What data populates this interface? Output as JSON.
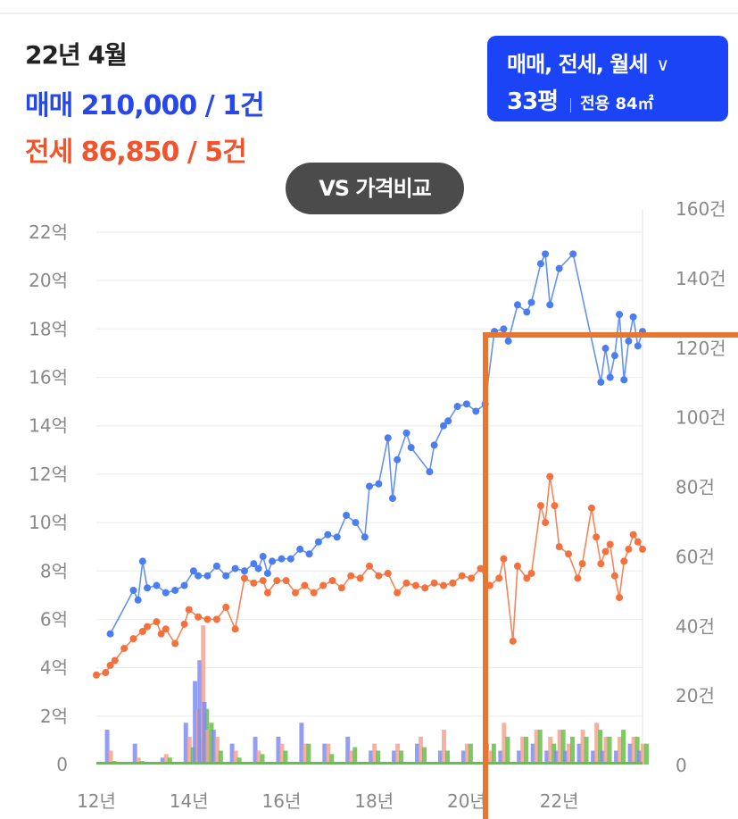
{
  "header": {
    "period": "22년 4월",
    "sale_line": "매매 210,000 / 1건",
    "jeonse_line": "전세 86,850 / 5건"
  },
  "type_button": {
    "types": "매매, 전세, 월세",
    "chevron_icon": "chevron-down-icon",
    "pyeong": "33평",
    "area": "전용 84㎡",
    "color": "#1a44f5"
  },
  "vs_button": {
    "label": "VS 가격비교"
  },
  "chart_data": {
    "type": "line",
    "x_ticks": [
      "12년",
      "14년",
      "16년",
      "18년",
      "20년",
      "22년"
    ],
    "y_left_ticks": [
      "0",
      "2억",
      "4억",
      "6억",
      "8억",
      "10억",
      "12억",
      "14억",
      "16억",
      "18억",
      "20억",
      "22억"
    ],
    "y_right_ticks": [
      "0",
      "20건",
      "40건",
      "60건",
      "80건",
      "100건",
      "120건",
      "140건",
      "160건"
    ],
    "ylim_left": [
      0,
      22
    ],
    "ylim_right": [
      0,
      160
    ],
    "xlim": [
      2012,
      2023.8
    ],
    "grid": true,
    "series": [
      {
        "color": "#4a7ef0",
        "points": [
          [
            2012.3,
            5.4
          ],
          [
            2012.8,
            7.2
          ],
          [
            2012.9,
            6.8
          ],
          [
            2013.0,
            8.4
          ],
          [
            2013.1,
            7.3
          ],
          [
            2013.3,
            7.4
          ],
          [
            2013.5,
            7.1
          ],
          [
            2013.7,
            7.2
          ],
          [
            2013.9,
            7.4
          ],
          [
            2014.1,
            8.0
          ],
          [
            2014.2,
            7.8
          ],
          [
            2014.4,
            7.8
          ],
          [
            2014.6,
            8.2
          ],
          [
            2014.8,
            7.8
          ],
          [
            2015.0,
            8.1
          ],
          [
            2015.2,
            8.0
          ],
          [
            2015.4,
            8.3
          ],
          [
            2015.5,
            8.1
          ],
          [
            2015.6,
            8.6
          ],
          [
            2015.7,
            7.9
          ],
          [
            2015.8,
            8.4
          ],
          [
            2016.0,
            8.5
          ],
          [
            2016.2,
            8.5
          ],
          [
            2016.4,
            8.9
          ],
          [
            2016.6,
            8.7
          ],
          [
            2016.8,
            9.2
          ],
          [
            2017.0,
            9.5
          ],
          [
            2017.2,
            9.4
          ],
          [
            2017.4,
            10.3
          ],
          [
            2017.6,
            10.0
          ],
          [
            2017.8,
            9.4
          ],
          [
            2017.9,
            11.5
          ],
          [
            2018.1,
            11.6
          ],
          [
            2018.3,
            13.5
          ],
          [
            2018.4,
            11.0
          ],
          [
            2018.5,
            12.6
          ],
          [
            2018.7,
            13.7
          ],
          [
            2018.8,
            13.1
          ],
          [
            2019.2,
            12.1
          ],
          [
            2019.3,
            13.2
          ],
          [
            2019.5,
            14.0
          ],
          [
            2019.6,
            14.2
          ],
          [
            2019.8,
            14.8
          ],
          [
            2020.0,
            14.9
          ],
          [
            2020.2,
            14.6
          ],
          [
            2020.4,
            14.9
          ],
          [
            2020.6,
            17.9
          ],
          [
            2020.8,
            18.0
          ],
          [
            2020.9,
            17.5
          ],
          [
            2021.1,
            19.0
          ],
          [
            2021.3,
            18.7
          ],
          [
            2021.4,
            19.1
          ],
          [
            2021.6,
            20.7
          ],
          [
            2021.7,
            21.1
          ],
          [
            2021.8,
            19.0
          ],
          [
            2022.0,
            20.5
          ],
          [
            2022.3,
            21.1
          ],
          [
            2022.9,
            15.8
          ],
          [
            2023.0,
            17.2
          ],
          [
            2023.1,
            16.0
          ],
          [
            2023.2,
            16.9
          ],
          [
            2023.3,
            18.6
          ],
          [
            2023.4,
            15.9
          ],
          [
            2023.5,
            17.5
          ],
          [
            2023.6,
            18.5
          ],
          [
            2023.7,
            17.3
          ],
          [
            2023.8,
            17.9
          ]
        ]
      },
      {
        "color": "#f4703c",
        "points": [
          [
            2012.0,
            3.7
          ],
          [
            2012.2,
            3.8
          ],
          [
            2012.3,
            4.1
          ],
          [
            2012.4,
            4.3
          ],
          [
            2012.6,
            4.8
          ],
          [
            2012.8,
            5.2
          ],
          [
            2013.0,
            5.5
          ],
          [
            2013.1,
            5.7
          ],
          [
            2013.3,
            5.9
          ],
          [
            2013.4,
            5.4
          ],
          [
            2013.5,
            5.6
          ],
          [
            2013.7,
            5.0
          ],
          [
            2013.9,
            5.8
          ],
          [
            2014.0,
            6.4
          ],
          [
            2014.2,
            6.1
          ],
          [
            2014.4,
            6.0
          ],
          [
            2014.6,
            6.0
          ],
          [
            2014.8,
            6.5
          ],
          [
            2015.0,
            5.6
          ],
          [
            2015.2,
            7.7
          ],
          [
            2015.4,
            7.5
          ],
          [
            2015.6,
            7.6
          ],
          [
            2015.7,
            7.1
          ],
          [
            2015.9,
            7.6
          ],
          [
            2016.1,
            7.6
          ],
          [
            2016.3,
            7.1
          ],
          [
            2016.5,
            7.4
          ],
          [
            2016.7,
            7.1
          ],
          [
            2016.9,
            7.4
          ],
          [
            2017.1,
            7.6
          ],
          [
            2017.3,
            7.3
          ],
          [
            2017.5,
            7.8
          ],
          [
            2017.7,
            7.7
          ],
          [
            2017.9,
            8.2
          ],
          [
            2018.1,
            7.8
          ],
          [
            2018.3,
            7.9
          ],
          [
            2018.5,
            7.1
          ],
          [
            2018.7,
            7.5
          ],
          [
            2018.9,
            7.4
          ],
          [
            2019.1,
            7.3
          ],
          [
            2019.3,
            7.5
          ],
          [
            2019.5,
            7.4
          ],
          [
            2019.7,
            7.5
          ],
          [
            2019.9,
            7.8
          ],
          [
            2020.1,
            7.7
          ],
          [
            2020.3,
            8.1
          ],
          [
            2020.5,
            7.4
          ],
          [
            2020.7,
            7.7
          ],
          [
            2020.8,
            8.5
          ],
          [
            2021.0,
            5.1
          ],
          [
            2021.1,
            8.2
          ],
          [
            2021.3,
            7.7
          ],
          [
            2021.4,
            7.9
          ],
          [
            2021.6,
            10.7
          ],
          [
            2021.7,
            10.0
          ],
          [
            2021.8,
            11.9
          ],
          [
            2021.9,
            10.7
          ],
          [
            2022.0,
            9.0
          ],
          [
            2022.2,
            8.7
          ],
          [
            2022.4,
            7.7
          ],
          [
            2022.5,
            8.3
          ],
          [
            2022.7,
            10.6
          ],
          [
            2022.8,
            9.4
          ],
          [
            2022.9,
            8.3
          ],
          [
            2023.0,
            8.8
          ],
          [
            2023.1,
            9.1
          ],
          [
            2023.2,
            7.8
          ],
          [
            2023.3,
            6.9
          ],
          [
            2023.4,
            8.4
          ],
          [
            2023.5,
            8.9
          ],
          [
            2023.6,
            9.5
          ],
          [
            2023.7,
            9.2
          ],
          [
            2023.8,
            8.9
          ]
        ]
      }
    ],
    "volume": {
      "unit": "건",
      "sale_color": "#7f8cf2",
      "jeonse_color": "#f6a38f",
      "monthly_color": "#66bf4a",
      "points": [
        [
          2012.3,
          10,
          4,
          1
        ],
        [
          2012.9,
          6,
          2,
          1
        ],
        [
          2013.5,
          2,
          3,
          2
        ],
        [
          2014.0,
          12,
          8,
          5
        ],
        [
          2014.2,
          24,
          16,
          8
        ],
        [
          2014.3,
          30,
          40,
          16
        ],
        [
          2014.4,
          18,
          10,
          12
        ],
        [
          2014.6,
          10,
          8,
          4
        ],
        [
          2015.0,
          6,
          4,
          2
        ],
        [
          2015.5,
          8,
          4,
          3
        ],
        [
          2016.0,
          8,
          6,
          4
        ],
        [
          2016.5,
          12,
          6,
          6
        ],
        [
          2017.0,
          6,
          6,
          3
        ],
        [
          2017.5,
          8,
          4,
          5
        ],
        [
          2018.0,
          4,
          6,
          4
        ],
        [
          2018.5,
          4,
          6,
          4
        ],
        [
          2019.0,
          6,
          8,
          5
        ],
        [
          2019.5,
          4,
          10,
          4
        ],
        [
          2020.0,
          4,
          6,
          6
        ],
        [
          2020.5,
          6,
          4,
          6
        ],
        [
          2020.8,
          4,
          12,
          8
        ],
        [
          2021.2,
          4,
          8,
          8
        ],
        [
          2021.5,
          6,
          10,
          10
        ],
        [
          2021.8,
          4,
          8,
          6
        ],
        [
          2022.0,
          4,
          10,
          10
        ],
        [
          2022.2,
          4,
          6,
          8
        ],
        [
          2022.5,
          6,
          10,
          8
        ],
        [
          2022.8,
          4,
          12,
          10
        ],
        [
          2023.0,
          4,
          8,
          8
        ],
        [
          2023.3,
          4,
          8,
          10
        ],
        [
          2023.6,
          6,
          8,
          8
        ],
        [
          2023.8,
          4,
          6,
          6
        ]
      ]
    }
  },
  "overlay": {
    "color": "#e67630"
  }
}
